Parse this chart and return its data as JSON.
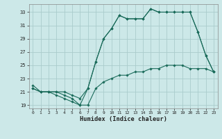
{
  "xlabel": "Humidex (Indice chaleur)",
  "background_color": "#cce8e8",
  "grid_color": "#aacccc",
  "line_color": "#1a6b5a",
  "xlim": [
    -0.5,
    23.5
  ],
  "ylim": [
    18.5,
    34.2
  ],
  "xticks": [
    0,
    1,
    2,
    3,
    4,
    5,
    6,
    7,
    8,
    9,
    10,
    11,
    12,
    13,
    14,
    15,
    16,
    17,
    18,
    19,
    20,
    21,
    22,
    23
  ],
  "yticks": [
    19,
    21,
    23,
    25,
    27,
    29,
    31,
    33
  ],
  "s1y": [
    21.5,
    21.0,
    21.0,
    21.0,
    21.0,
    20.5,
    20.0,
    21.5,
    25.5,
    29.0,
    30.5,
    32.5,
    32.0,
    32.0,
    32.0,
    33.5,
    33.0,
    33.0,
    33.0,
    33.0,
    33.0,
    30.0,
    26.5,
    24.0
  ],
  "s2y": [
    21.5,
    21.0,
    21.0,
    21.0,
    20.5,
    20.0,
    19.0,
    21.5,
    25.5,
    29.0,
    30.5,
    32.5,
    32.0,
    32.0,
    32.0,
    33.5,
    33.0,
    33.0,
    33.0,
    33.0,
    33.0,
    30.0,
    26.5,
    24.0
  ],
  "s3y": [
    22.0,
    21.0,
    21.0,
    20.5,
    20.0,
    19.5,
    19.0,
    19.0,
    21.5,
    22.5,
    23.0,
    23.5,
    23.5,
    24.0,
    24.0,
    24.5,
    24.5,
    25.0,
    25.0,
    25.0,
    24.5,
    24.5,
    24.5,
    24.0
  ]
}
